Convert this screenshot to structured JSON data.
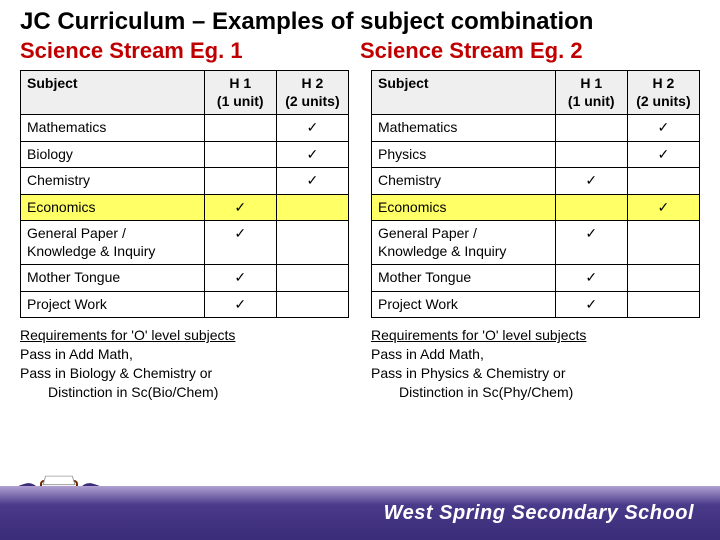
{
  "title": "JC Curriculum – Examples of subject combination",
  "streams": [
    {
      "heading": "Science Stream Eg. 1",
      "columns": [
        "Subject",
        "H 1\n(1 unit)",
        "H 2\n(2 units)"
      ],
      "rows": [
        {
          "subject": "Mathematics",
          "h1": "",
          "h2": "✓",
          "highlight": false
        },
        {
          "subject": "Biology",
          "h1": "",
          "h2": "✓",
          "highlight": false
        },
        {
          "subject": "Chemistry",
          "h1": "",
          "h2": "✓",
          "highlight": false
        },
        {
          "subject": "Economics",
          "h1": "✓",
          "h2": "",
          "highlight": true
        },
        {
          "subject": "General Paper / Knowledge & Inquiry",
          "h1": "✓",
          "h2": "",
          "highlight": false
        },
        {
          "subject": "Mother Tongue",
          "h1": "✓",
          "h2": "",
          "highlight": false
        },
        {
          "subject": "Project Work",
          "h1": "✓",
          "h2": "",
          "highlight": false
        }
      ],
      "req_title": "Requirements for 'O' level subjects",
      "req_lines": [
        "Pass in Add Math,",
        "Pass in Biology & Chemistry or"
      ],
      "req_indent": "Distinction in Sc(Bio/Chem)"
    },
    {
      "heading": "Science Stream Eg. 2",
      "columns": [
        "Subject",
        "H 1\n(1 unit)",
        "H 2\n(2 units)"
      ],
      "rows": [
        {
          "subject": "Mathematics",
          "h1": "",
          "h2": "✓",
          "highlight": false
        },
        {
          "subject": "Physics",
          "h1": "",
          "h2": "✓",
          "highlight": false
        },
        {
          "subject": "Chemistry",
          "h1": "✓",
          "h2": "",
          "highlight": false
        },
        {
          "subject": "Economics",
          "h1": "",
          "h2": "✓",
          "highlight": true
        },
        {
          "subject": "General Paper / Knowledge & Inquiry",
          "h1": "✓",
          "h2": "",
          "highlight": false
        },
        {
          "subject": "Mother Tongue",
          "h1": "✓",
          "h2": "",
          "highlight": false
        },
        {
          "subject": "Project Work",
          "h1": "✓",
          "h2": "",
          "highlight": false
        }
      ],
      "req_title": "Requirements for 'O' level subjects",
      "req_lines": [
        "Pass in Add Math,",
        "Pass in Physics & Chemistry or"
      ],
      "req_indent": "Distinction in Sc(Phy/Chem)"
    }
  ],
  "footer": "West Spring Secondary School",
  "colors": {
    "accent_red": "#c00000",
    "highlight": "#ffff66",
    "footer_grad_top": "#b0a0d2",
    "footer_grad_bot": "#3a2c78"
  }
}
